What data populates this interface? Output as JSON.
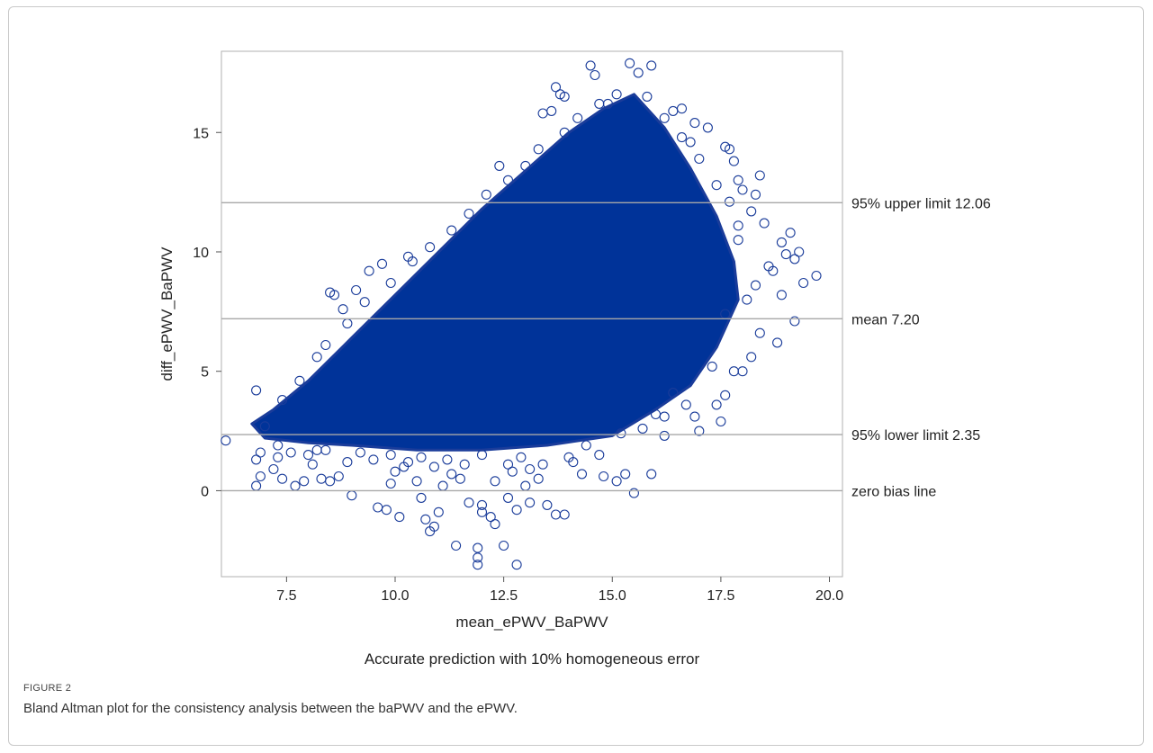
{
  "figure": {
    "label": "FIGURE 2",
    "caption": "Bland Altman plot for the consistency analysis between the baPWV and the ePWV."
  },
  "chart_data": {
    "type": "scatter",
    "title": "",
    "subtitle": "Accurate prediction with 10% homogeneous error",
    "xlabel": "mean_ePWV_BaPWV",
    "ylabel": "diff_ePWV_BaPWV",
    "xlim": [
      6.0,
      20.3
    ],
    "ylim": [
      -3.6,
      18.4
    ],
    "xticks": [
      7.5,
      10.0,
      12.5,
      15.0,
      17.5,
      20.0
    ],
    "xtick_labels": [
      "7.5",
      "10.0",
      "12.5",
      "15.0",
      "17.5",
      "20.0"
    ],
    "yticks": [
      0,
      5,
      10,
      15
    ],
    "ytick_labels": [
      "0",
      "5",
      "10",
      "15"
    ],
    "grid": false,
    "marker": "open-circle",
    "marker_color": "#1a3c9a",
    "dense_fill_color": "#003399",
    "reference_lines": [
      {
        "name": "upper_limit",
        "y": 12.06,
        "label": "95% upper limit 12.06"
      },
      {
        "name": "mean",
        "y": 7.2,
        "label": "mean 7.20"
      },
      {
        "name": "lower_limit",
        "y": 2.35,
        "label": "95% lower limit 2.35"
      },
      {
        "name": "zero",
        "y": 0,
        "label": "zero bias line"
      }
    ],
    "dense_region": [
      [
        6.7,
        2.8
      ],
      [
        7.2,
        3.4
      ],
      [
        8.0,
        4.6
      ],
      [
        9.0,
        6.4
      ],
      [
        10.0,
        8.2
      ],
      [
        11.0,
        10.0
      ],
      [
        12.0,
        11.8
      ],
      [
        13.0,
        13.4
      ],
      [
        14.0,
        15.0
      ],
      [
        14.8,
        16.0
      ],
      [
        15.5,
        16.6
      ],
      [
        16.2,
        15.2
      ],
      [
        16.8,
        13.5
      ],
      [
        17.4,
        11.5
      ],
      [
        17.8,
        9.6
      ],
      [
        17.9,
        8.0
      ],
      [
        17.4,
        6.0
      ],
      [
        16.8,
        4.4
      ],
      [
        16.0,
        3.4
      ],
      [
        15.0,
        2.3
      ],
      [
        13.5,
        1.9
      ],
      [
        12.0,
        1.7
      ],
      [
        10.5,
        1.7
      ],
      [
        9.0,
        1.9
      ],
      [
        8.0,
        2.0
      ],
      [
        7.0,
        2.2
      ]
    ],
    "points": [
      [
        6.1,
        2.1
      ],
      [
        6.8,
        0.2
      ],
      [
        6.9,
        0.6
      ],
      [
        6.8,
        1.3
      ],
      [
        6.9,
        1.6
      ],
      [
        6.8,
        4.2
      ],
      [
        7.2,
        0.9
      ],
      [
        7.3,
        1.4
      ],
      [
        7.4,
        0.5
      ],
      [
        7.7,
        0.2
      ],
      [
        7.9,
        0.4
      ],
      [
        8.1,
        1.1
      ],
      [
        8.3,
        0.5
      ],
      [
        8.5,
        0.4
      ],
      [
        8.7,
        0.6
      ],
      [
        8.2,
        1.7
      ],
      [
        8.6,
        8.2
      ],
      [
        8.5,
        8.3
      ],
      [
        8.8,
        7.6
      ],
      [
        9.1,
        8.4
      ],
      [
        9.0,
        -0.2
      ],
      [
        9.4,
        9.2
      ],
      [
        9.6,
        -0.7
      ],
      [
        9.7,
        9.5
      ],
      [
        9.8,
        -0.8
      ],
      [
        9.9,
        0.3
      ],
      [
        10.1,
        -1.1
      ],
      [
        10.0,
        0.8
      ],
      [
        10.2,
        1.0
      ],
      [
        10.3,
        9.8
      ],
      [
        10.5,
        0.4
      ],
      [
        10.6,
        -0.3
      ],
      [
        10.7,
        -1.2
      ],
      [
        10.8,
        -1.7
      ],
      [
        10.9,
        -1.5
      ],
      [
        11.0,
        -0.9
      ],
      [
        11.1,
        0.2
      ],
      [
        11.3,
        0.7
      ],
      [
        11.4,
        -2.3
      ],
      [
        11.5,
        0.5
      ],
      [
        11.7,
        -0.5
      ],
      [
        11.9,
        -3.1
      ],
      [
        11.9,
        -2.8
      ],
      [
        11.9,
        -2.4
      ],
      [
        12.0,
        -0.6
      ],
      [
        12.0,
        -0.9
      ],
      [
        12.2,
        -1.1
      ],
      [
        12.3,
        -1.4
      ],
      [
        12.3,
        0.4
      ],
      [
        12.4,
        13.6
      ],
      [
        12.5,
        -2.3
      ],
      [
        12.6,
        -0.3
      ],
      [
        12.7,
        0.8
      ],
      [
        12.8,
        -3.1
      ],
      [
        12.8,
        -0.8
      ],
      [
        13.0,
        0.2
      ],
      [
        13.1,
        -0.5
      ],
      [
        13.3,
        0.5
      ],
      [
        13.5,
        -0.6
      ],
      [
        13.7,
        -1.0
      ],
      [
        13.9,
        -1.0
      ],
      [
        13.4,
        15.8
      ],
      [
        13.6,
        15.9
      ],
      [
        13.7,
        16.9
      ],
      [
        13.8,
        16.6
      ],
      [
        13.9,
        16.5
      ],
      [
        14.1,
        1.2
      ],
      [
        14.3,
        0.7
      ],
      [
        14.5,
        17.8
      ],
      [
        14.6,
        17.4
      ],
      [
        14.8,
        0.6
      ],
      [
        14.9,
        16.2
      ],
      [
        15.1,
        0.4
      ],
      [
        15.3,
        0.7
      ],
      [
        15.4,
        17.9
      ],
      [
        15.5,
        -0.1
      ],
      [
        15.6,
        17.5
      ],
      [
        15.9,
        0.7
      ],
      [
        15.9,
        17.8
      ],
      [
        16.2,
        2.3
      ],
      [
        16.2,
        3.1
      ],
      [
        16.4,
        15.9
      ],
      [
        16.6,
        16.0
      ],
      [
        16.8,
        14.6
      ],
      [
        16.9,
        15.4
      ],
      [
        16.9,
        3.1
      ],
      [
        17.0,
        2.5
      ],
      [
        17.2,
        15.2
      ],
      [
        17.4,
        3.6
      ],
      [
        17.5,
        2.9
      ],
      [
        17.6,
        4.0
      ],
      [
        17.6,
        14.4
      ],
      [
        17.7,
        14.3
      ],
      [
        17.8,
        5.0
      ],
      [
        17.8,
        13.8
      ],
      [
        17.9,
        13.0
      ],
      [
        18.0,
        12.6
      ],
      [
        18.0,
        5.0
      ],
      [
        18.1,
        8.0
      ],
      [
        18.2,
        5.6
      ],
      [
        18.3,
        12.4
      ],
      [
        18.3,
        8.6
      ],
      [
        18.4,
        6.6
      ],
      [
        18.4,
        13.2
      ],
      [
        18.5,
        11.2
      ],
      [
        18.6,
        9.4
      ],
      [
        18.7,
        9.2
      ],
      [
        18.8,
        6.2
      ],
      [
        18.9,
        8.2
      ],
      [
        18.9,
        10.4
      ],
      [
        19.0,
        9.9
      ],
      [
        19.1,
        10.8
      ],
      [
        19.2,
        7.1
      ],
      [
        19.2,
        9.7
      ],
      [
        19.3,
        10.0
      ],
      [
        19.4,
        8.7
      ],
      [
        19.7,
        9.0
      ],
      [
        18.2,
        11.7
      ],
      [
        17.9,
        10.5
      ],
      [
        17.6,
        7.4
      ],
      [
        17.3,
        5.2
      ],
      [
        16.7,
        3.6
      ],
      [
        16.4,
        4.1
      ],
      [
        16.0,
        3.2
      ],
      [
        15.7,
        2.6
      ],
      [
        15.2,
        2.4
      ],
      [
        14.7,
        1.5
      ],
      [
        14.4,
        1.9
      ],
      [
        14.0,
        1.4
      ],
      [
        13.4,
        1.1
      ],
      [
        13.1,
        0.9
      ],
      [
        12.9,
        1.4
      ],
      [
        12.6,
        1.1
      ],
      [
        12.0,
        1.5
      ],
      [
        11.6,
        1.1
      ],
      [
        11.2,
        1.3
      ],
      [
        10.9,
        1.0
      ],
      [
        10.6,
        1.4
      ],
      [
        10.3,
        1.2
      ],
      [
        9.9,
        1.5
      ],
      [
        9.5,
        1.3
      ],
      [
        9.2,
        1.6
      ],
      [
        8.9,
        1.2
      ],
      [
        8.4,
        1.7
      ],
      [
        8.0,
        1.5
      ],
      [
        7.6,
        1.6
      ],
      [
        7.3,
        1.9
      ],
      [
        7.0,
        2.7
      ],
      [
        7.4,
        3.8
      ],
      [
        7.8,
        4.6
      ],
      [
        8.2,
        5.6
      ],
      [
        8.4,
        6.1
      ],
      [
        8.9,
        7.0
      ],
      [
        9.3,
        7.9
      ],
      [
        9.9,
        8.7
      ],
      [
        10.4,
        9.6
      ],
      [
        10.8,
        10.2
      ],
      [
        11.3,
        10.9
      ],
      [
        11.7,
        11.6
      ],
      [
        12.1,
        12.4
      ],
      [
        12.6,
        13.0
      ],
      [
        13.0,
        13.6
      ],
      [
        13.3,
        14.3
      ],
      [
        13.9,
        15.0
      ],
      [
        14.2,
        15.6
      ],
      [
        14.7,
        16.2
      ],
      [
        15.1,
        16.6
      ],
      [
        15.8,
        16.5
      ],
      [
        16.2,
        15.6
      ],
      [
        16.6,
        14.8
      ],
      [
        17.0,
        13.9
      ],
      [
        17.4,
        12.8
      ],
      [
        17.7,
        12.1
      ],
      [
        17.9,
        11.1
      ]
    ]
  }
}
